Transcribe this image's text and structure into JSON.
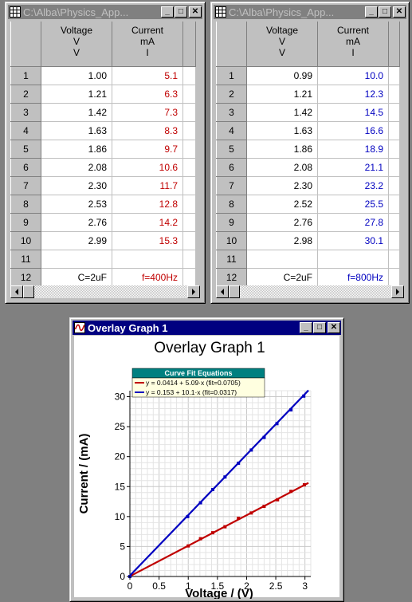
{
  "table1": {
    "title": "C:\\Alba\\Physics_App...",
    "col1": {
      "line1": "Voltage",
      "line2": "V",
      "line3": "V"
    },
    "col2": {
      "line1": "Current",
      "line2": "mA",
      "line3": "I"
    },
    "rows": [
      {
        "n": "1",
        "v": "1.00",
        "i": "5.1"
      },
      {
        "n": "2",
        "v": "1.21",
        "i": "6.3"
      },
      {
        "n": "3",
        "v": "1.42",
        "i": "7.3"
      },
      {
        "n": "4",
        "v": "1.63",
        "i": "8.3"
      },
      {
        "n": "5",
        "v": "1.86",
        "i": "9.7"
      },
      {
        "n": "6",
        "v": "2.08",
        "i": "10.6"
      },
      {
        "n": "7",
        "v": "2.30",
        "i": "11.7"
      },
      {
        "n": "8",
        "v": "2.53",
        "i": "12.8"
      },
      {
        "n": "9",
        "v": "2.76",
        "i": "14.2"
      },
      {
        "n": "10",
        "v": "2.99",
        "i": "15.3"
      },
      {
        "n": "11",
        "v": "",
        "i": ""
      },
      {
        "n": "12",
        "v": "C=2uF",
        "i": "f=400Hz"
      }
    ]
  },
  "table2": {
    "title": "C:\\Alba\\Physics_App...",
    "col1": {
      "line1": "Voltage",
      "line2": "V",
      "line3": "V"
    },
    "col2": {
      "line1": "Current",
      "line2": "mA",
      "line3": "I"
    },
    "rows": [
      {
        "n": "1",
        "v": "0.99",
        "i": "10.0"
      },
      {
        "n": "2",
        "v": "1.21",
        "i": "12.3"
      },
      {
        "n": "3",
        "v": "1.42",
        "i": "14.5"
      },
      {
        "n": "4",
        "v": "1.63",
        "i": "16.6"
      },
      {
        "n": "5",
        "v": "1.86",
        "i": "18.9"
      },
      {
        "n": "6",
        "v": "2.08",
        "i": "21.1"
      },
      {
        "n": "7",
        "v": "2.30",
        "i": "23.2"
      },
      {
        "n": "8",
        "v": "2.52",
        "i": "25.5"
      },
      {
        "n": "9",
        "v": "2.76",
        "i": "27.8"
      },
      {
        "n": "10",
        "v": "2.98",
        "i": "30.1"
      },
      {
        "n": "11",
        "v": "",
        "i": ""
      },
      {
        "n": "12",
        "v": "C=2uF",
        "i": "f=800Hz"
      }
    ]
  },
  "graph": {
    "window_title": "Overlay Graph 1",
    "title": "Overlay Graph 1",
    "xlabel": "Voltage / (V)",
    "ylabel": "Current / (mA)",
    "legend_title": "Curve Fit Equations",
    "legend": [
      {
        "text": "y = 0.0414 + 5.09·x (fit=0.0705)",
        "color": "#c00000"
      },
      {
        "text": "y = 0.153 + 10.1·x (fit=0.0317)",
        "color": "#0000c0"
      }
    ],
    "xticks": [
      "0",
      "0.5",
      "1",
      "1.5",
      "2",
      "2.5",
      "3"
    ],
    "yticks": [
      "0",
      "5",
      "10",
      "15",
      "20",
      "25",
      "30"
    ]
  },
  "chart_data": {
    "type": "scatter",
    "title": "Overlay Graph 1",
    "xlabel": "Voltage / (V)",
    "ylabel": "Current / (mA)",
    "xlim": [
      0,
      3.1
    ],
    "ylim": [
      0,
      31
    ],
    "grid": true,
    "legend_position": "top-left",
    "series": [
      {
        "color": "#c00000",
        "x": [
          1.0,
          1.21,
          1.42,
          1.63,
          1.86,
          2.08,
          2.3,
          2.53,
          2.76,
          2.99
        ],
        "y": [
          5.1,
          6.3,
          7.3,
          8.3,
          9.7,
          10.6,
          11.7,
          12.8,
          14.2,
          15.3
        ],
        "fit": {
          "intercept": 0.0414,
          "slope": 5.09
        }
      },
      {
        "color": "#0000c0",
        "x": [
          0.99,
          1.21,
          1.42,
          1.63,
          1.86,
          2.08,
          2.3,
          2.52,
          2.76,
          2.98
        ],
        "y": [
          10.0,
          12.3,
          14.5,
          16.6,
          18.9,
          21.1,
          23.2,
          25.5,
          27.8,
          30.1
        ],
        "fit": {
          "intercept": 0.153,
          "slope": 10.1
        }
      }
    ]
  }
}
